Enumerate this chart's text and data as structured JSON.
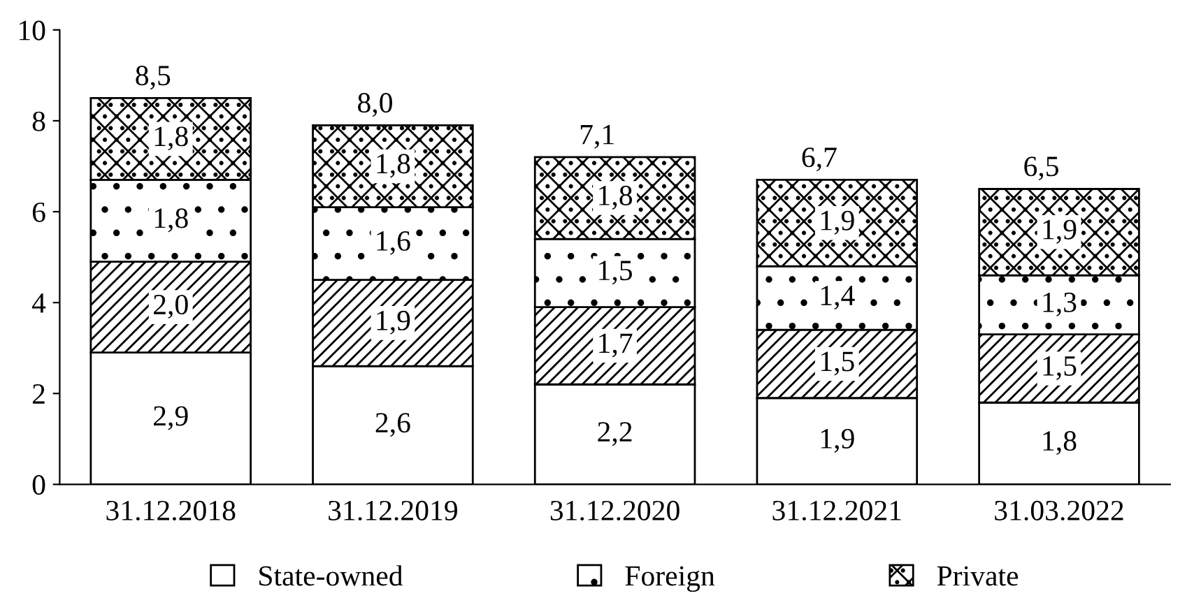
{
  "chart_data": {
    "type": "bar",
    "stacked": true,
    "categories": [
      "31.12.2018",
      "31.12.2019",
      "31.12.2020",
      "31.12.2021",
      "31.03.2022"
    ],
    "series": [
      {
        "name": "State-owned",
        "color": "#000000",
        "values": [
          2.9,
          2.6,
          2.2,
          1.9,
          1.8
        ],
        "value_labels": [
          "2,9",
          "2,6",
          "2,2",
          "1,9",
          "1,8"
        ]
      },
      {
        "color": "#000000",
        "values": [
          2.0,
          1.9,
          1.7,
          1.5,
          1.5
        ],
        "value_labels": [
          "2,0",
          "1,9",
          "1,7",
          "1,5",
          "1,5"
        ]
      },
      {
        "name": "Foreign",
        "color": "#000000",
        "values": [
          1.8,
          1.6,
          1.5,
          1.4,
          1.3
        ],
        "value_labels": [
          "1,8",
          "1,6",
          "1,5",
          "1,4",
          "1,3"
        ]
      },
      {
        "name": "Private",
        "color": "#000000",
        "values": [
          1.8,
          1.8,
          1.8,
          1.9,
          1.9
        ],
        "value_labels": [
          "1,8",
          "1,8",
          "1,8",
          "1,9",
          "1,9"
        ]
      }
    ],
    "totals": [
      "8,5",
      "8,0",
      "7,1",
      "6,7",
      "6,5"
    ],
    "ylim": [
      0,
      10
    ],
    "yticks": [
      0,
      2,
      4,
      6,
      8,
      10
    ],
    "grid": false,
    "legend": "bottom"
  }
}
